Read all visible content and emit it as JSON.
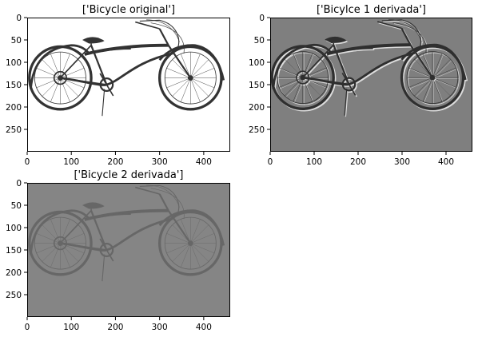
{
  "window": {
    "background": "#ffffff"
  },
  "chart_data": [
    {
      "type": "image",
      "panel_id": "original",
      "title": "['Bicycle original']",
      "image_content": "grayscale photograph of a cruiser bicycle on white background",
      "colormap": "gray",
      "xlim": [
        0,
        460
      ],
      "ylim": [
        300,
        0
      ],
      "xticks": [
        0,
        100,
        200,
        300,
        400
      ],
      "yticks": [
        0,
        50,
        100,
        150,
        200,
        250
      ],
      "background_value": "#ffffff",
      "stroke_color": "#333333"
    },
    {
      "type": "image",
      "panel_id": "first-derivative",
      "title": "['Bicylce 1 derivada']",
      "image_content": "first-derivative edge response of the bicycle image, embossed appearance",
      "colormap": "gray",
      "xlim": [
        0,
        460
      ],
      "ylim": [
        300,
        0
      ],
      "xticks": [
        0,
        100,
        200,
        300,
        400
      ],
      "yticks": [
        0,
        50,
        100,
        150,
        200,
        250
      ],
      "background_value": "#7f7f7f",
      "stroke_color": "#2f2f2f"
    },
    {
      "type": "image",
      "panel_id": "second-derivative",
      "title": "['Bicycle 2 derivada']",
      "image_content": "second-derivative edge response of the bicycle image, thin outlines",
      "colormap": "gray",
      "xlim": [
        0,
        460
      ],
      "ylim": [
        300,
        0
      ],
      "xticks": [
        0,
        100,
        200,
        300,
        400
      ],
      "yticks": [
        0,
        50,
        100,
        150,
        200,
        250
      ],
      "background_value": "#858585",
      "stroke_color": "#4f4f4f"
    }
  ]
}
